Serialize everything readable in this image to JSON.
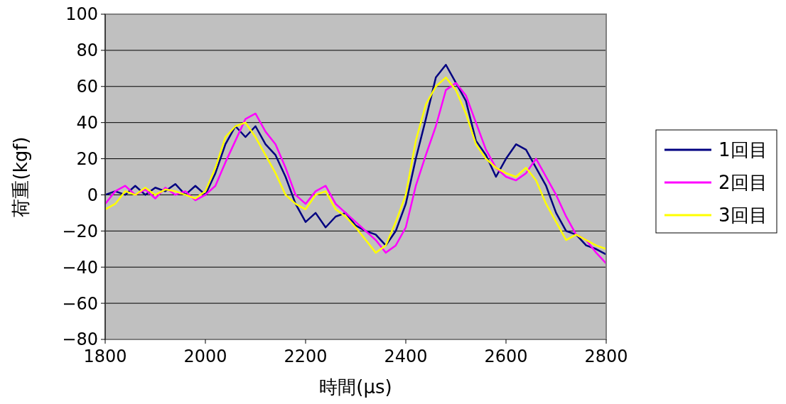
{
  "chart_data": {
    "type": "line",
    "xlabel": "時間(μs)",
    "ylabel": "荷重(kgf)",
    "x": [
      1800,
      1820,
      1840,
      1860,
      1880,
      1900,
      1920,
      1940,
      1960,
      1980,
      2000,
      2020,
      2040,
      2060,
      2080,
      2100,
      2120,
      2140,
      2160,
      2180,
      2200,
      2220,
      2240,
      2260,
      2280,
      2300,
      2320,
      2340,
      2360,
      2380,
      2400,
      2420,
      2440,
      2460,
      2480,
      2500,
      2520,
      2540,
      2560,
      2580,
      2600,
      2620,
      2640,
      2660,
      2680,
      2700,
      2720,
      2740,
      2760,
      2780,
      2800
    ],
    "series": [
      {
        "name": "1回目",
        "color": "#000080",
        "values": [
          0,
          2,
          0,
          5,
          0,
          4,
          2,
          6,
          0,
          5,
          0,
          12,
          28,
          38,
          32,
          38,
          28,
          22,
          10,
          -5,
          -15,
          -10,
          -18,
          -12,
          -10,
          -17,
          -20,
          -22,
          -28,
          -20,
          -5,
          20,
          42,
          65,
          72,
          62,
          52,
          30,
          22,
          10,
          20,
          28,
          25,
          15,
          5,
          -10,
          -20,
          -22,
          -28,
          -30,
          -33
        ]
      },
      {
        "name": "2回目",
        "color": "#ff00ff",
        "values": [
          -5,
          2,
          5,
          0,
          3,
          -2,
          4,
          0,
          2,
          -3,
          0,
          5,
          18,
          30,
          42,
          45,
          35,
          28,
          15,
          0,
          -5,
          2,
          5,
          -5,
          -10,
          -15,
          -20,
          -25,
          -32,
          -28,
          -18,
          5,
          22,
          38,
          58,
          62,
          55,
          40,
          25,
          15,
          10,
          8,
          12,
          20,
          10,
          0,
          -12,
          -22,
          -25,
          -32,
          -38
        ]
      },
      {
        "name": "3回目",
        "color": "#ffff00",
        "values": [
          -8,
          -5,
          2,
          0,
          4,
          0,
          3,
          2,
          0,
          -2,
          2,
          15,
          32,
          38,
          40,
          32,
          22,
          12,
          0,
          -5,
          -8,
          0,
          2,
          -8,
          -12,
          -18,
          -25,
          -32,
          -28,
          -15,
          0,
          30,
          50,
          60,
          65,
          58,
          45,
          28,
          20,
          15,
          12,
          10,
          15,
          8,
          -5,
          -15,
          -25,
          -22,
          -25,
          -28,
          -30
        ]
      }
    ],
    "xlim": [
      1800,
      2800
    ],
    "xticks": [
      1800,
      2000,
      2200,
      2400,
      2600,
      2800
    ],
    "ylim": [
      -80,
      100
    ],
    "yticks": [
      -80,
      -60,
      -40,
      -20,
      0,
      20,
      40,
      60,
      80,
      100
    ],
    "grid": "y",
    "legend": "right"
  }
}
